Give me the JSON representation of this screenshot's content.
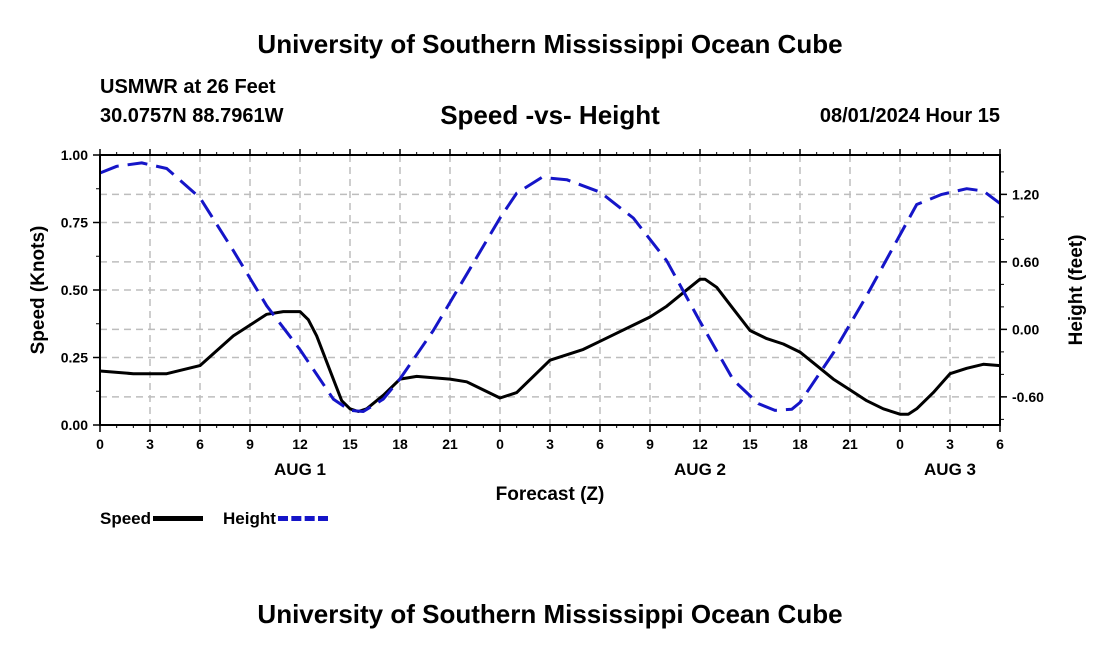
{
  "header": {
    "title": "University of Southern Mississippi Ocean Cube",
    "station": "USMWR at 26 Feet",
    "coords": "30.0757N  88.7961W",
    "subtitle": "Speed -vs- Height",
    "datetime": "08/01/2024 Hour 15"
  },
  "footer": {
    "title": "University of Southern Mississippi Ocean Cube"
  },
  "legend": {
    "speed_label": "Speed",
    "height_label": "Height"
  },
  "colors": {
    "speed": "#000000",
    "height": "#1515c8",
    "grid": "#bdbdbd"
  },
  "chart_data": {
    "type": "line",
    "title": "Speed -vs- Height",
    "xlabel": "Forecast (Z)",
    "ylabel": "Speed (Knots)",
    "y2label": "Height (feet)",
    "xlim": [
      0,
      54
    ],
    "ylim": [
      0,
      1
    ],
    "y2lim": [
      -0.85,
      1.55
    ],
    "x_ticks": [
      0,
      3,
      6,
      9,
      12,
      15,
      18,
      21,
      24,
      27,
      30,
      33,
      36,
      39,
      42,
      45,
      48,
      51,
      54
    ],
    "x_tick_labels": [
      "0",
      "3",
      "6",
      "9",
      "12",
      "15",
      "18",
      "21",
      "0",
      "3",
      "6",
      "9",
      "12",
      "15",
      "18",
      "21",
      "0",
      "3",
      "6"
    ],
    "date_labels": [
      {
        "x": 12,
        "label": "AUG 1"
      },
      {
        "x": 36,
        "label": "AUG 2"
      },
      {
        "x": 51,
        "label": "AUG 3"
      }
    ],
    "y_ticks": [
      0,
      0.25,
      0.5,
      0.75,
      1.0
    ],
    "y_tick_labels": [
      "0.00",
      "0.25",
      "0.50",
      "0.75",
      "1.00"
    ],
    "y2_ticks": [
      -0.6,
      0.0,
      0.6,
      1.2
    ],
    "y2_tick_labels": [
      "-0.60",
      "0.00",
      "0.60",
      "1.20"
    ],
    "grid": true,
    "series": [
      {
        "name": "Speed",
        "axis": "left",
        "style": "solid",
        "x": [
          0,
          2,
          4,
          6,
          8,
          10,
          11,
          12,
          12.5,
          13,
          14,
          14.5,
          15,
          15.5,
          16,
          17,
          18,
          19,
          20,
          21,
          22,
          23,
          24,
          25,
          26,
          27,
          28,
          29,
          30,
          31,
          32,
          33,
          34,
          35,
          36,
          36.3,
          37,
          38,
          39,
          40,
          41,
          42,
          43,
          44,
          45,
          46,
          47,
          48,
          48.5,
          49,
          50,
          51,
          52,
          53,
          54
        ],
        "values": [
          0.2,
          0.19,
          0.19,
          0.22,
          0.33,
          0.41,
          0.42,
          0.42,
          0.39,
          0.33,
          0.17,
          0.09,
          0.06,
          0.05,
          0.06,
          0.11,
          0.17,
          0.18,
          0.175,
          0.17,
          0.16,
          0.13,
          0.1,
          0.12,
          0.18,
          0.24,
          0.26,
          0.28,
          0.31,
          0.34,
          0.37,
          0.4,
          0.44,
          0.49,
          0.54,
          0.54,
          0.51,
          0.43,
          0.35,
          0.32,
          0.3,
          0.27,
          0.22,
          0.17,
          0.13,
          0.09,
          0.06,
          0.04,
          0.04,
          0.06,
          0.12,
          0.19,
          0.21,
          0.225,
          0.22
        ]
      },
      {
        "name": "Height",
        "axis": "right",
        "style": "dashed",
        "x": [
          0,
          1,
          2.5,
          4,
          6,
          8,
          10,
          12,
          13,
          14,
          15,
          15.8,
          17,
          18,
          20,
          22,
          24,
          25,
          26.5,
          28,
          30,
          32,
          34,
          36,
          38,
          39.5,
          40.5,
          41.5,
          42,
          44,
          46,
          48,
          49,
          50.5,
          52,
          53,
          54
        ],
        "values": [
          1.39,
          1.45,
          1.48,
          1.43,
          1.17,
          0.7,
          0.21,
          -0.18,
          -0.4,
          -0.62,
          -0.72,
          -0.73,
          -0.62,
          -0.44,
          -0.01,
          0.49,
          0.99,
          1.21,
          1.35,
          1.33,
          1.22,
          0.99,
          0.61,
          0.07,
          -0.45,
          -0.66,
          -0.72,
          -0.71,
          -0.65,
          -0.21,
          0.3,
          0.84,
          1.11,
          1.2,
          1.25,
          1.23,
          1.12
        ]
      }
    ]
  }
}
